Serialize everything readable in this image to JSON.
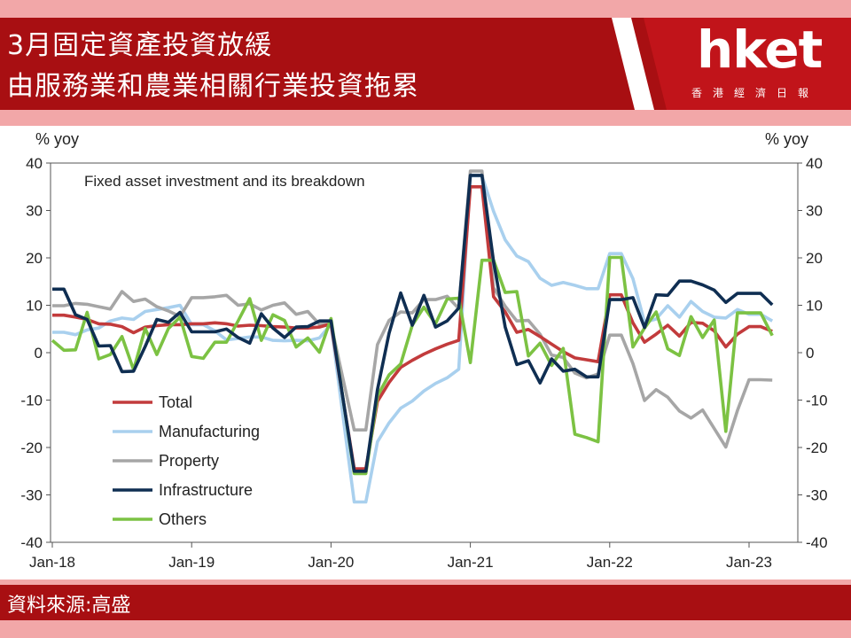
{
  "header": {
    "title_line1": "3月固定資產投資放緩",
    "title_line2": "由服務業和農業相關行業投資拖累",
    "logo_text": "hket",
    "logo_subtext": "香港經濟日報"
  },
  "footer": {
    "source": "資料來源:高盛"
  },
  "colors": {
    "header_bg": "#a80f12",
    "band": "#f2a7a8",
    "Total": "#c23b3c",
    "Manufacturing": "#a9d0ee",
    "Property": "#a6a6a6",
    "Infrastructure": "#0f2e52",
    "Others": "#7cc243"
  },
  "chart_data": {
    "type": "line",
    "title": "Fixed asset investment and its breakdown",
    "ylabel_left": "% yoy",
    "ylabel_right": "% yoy",
    "ylim": [
      -40,
      40
    ],
    "yticks": [
      40,
      30,
      20,
      10,
      0,
      -10,
      -20,
      -30,
      -40
    ],
    "xticks": [
      "Jan-18",
      "Jan-19",
      "Jan-20",
      "Jan-21",
      "Jan-22",
      "Jan-23"
    ],
    "x_start": "2018-01",
    "x_end": "2023-03",
    "legend_position": "lower-left",
    "series": [
      {
        "name": "Total",
        "points": [
          [
            0,
            7.9
          ],
          [
            1,
            7.9
          ],
          [
            2,
            7.5
          ],
          [
            3,
            7
          ],
          [
            4,
            6.1
          ],
          [
            5,
            6
          ],
          [
            6,
            5.5
          ],
          [
            7,
            4.2
          ],
          [
            8,
            5.4
          ],
          [
            9,
            5.7
          ],
          [
            10,
            5.9
          ],
          [
            11,
            5.9
          ],
          [
            12,
            6.1
          ],
          [
            13,
            6.1
          ],
          [
            14,
            6.3
          ],
          [
            15,
            6.1
          ],
          [
            16,
            5.6
          ],
          [
            17,
            5.8
          ],
          [
            18,
            5.7
          ],
          [
            19,
            5.5
          ],
          [
            20,
            5.4
          ],
          [
            21,
            5.2
          ],
          [
            22,
            5.2
          ],
          [
            23,
            5.4
          ],
          [
            24,
            6.1
          ],
          [
            26,
            -24.5
          ],
          [
            27,
            -24.5
          ],
          [
            28,
            -10.3
          ],
          [
            29,
            -6.3
          ],
          [
            30,
            -3.1
          ],
          [
            31,
            -1.6
          ],
          [
            32,
            -0.3
          ],
          [
            33,
            0.8
          ],
          [
            34,
            1.8
          ],
          [
            35,
            2.6
          ],
          [
            36,
            35
          ],
          [
            37,
            35
          ],
          [
            38,
            11.8
          ],
          [
            39,
            8.6
          ],
          [
            40,
            4.3
          ],
          [
            41,
            4.9
          ],
          [
            42,
            3.4
          ],
          [
            43,
            1.8
          ],
          [
            44,
            0.2
          ],
          [
            45,
            -1.1
          ],
          [
            46,
            -1.5
          ],
          [
            47,
            -1.9
          ],
          [
            48,
            12.2
          ],
          [
            49,
            12.2
          ],
          [
            50,
            6.3
          ],
          [
            51,
            2.2
          ],
          [
            52,
            3.9
          ],
          [
            53,
            5.8
          ],
          [
            54,
            3.5
          ],
          [
            55,
            6.4
          ],
          [
            56,
            6.2
          ],
          [
            57,
            4.6
          ],
          [
            58,
            1.2
          ],
          [
            59,
            3.9
          ],
          [
            60,
            5.5
          ],
          [
            61,
            5.5
          ],
          [
            62,
            4.5
          ]
        ]
      },
      {
        "name": "Manufacturing",
        "points": [
          [
            0,
            4.3
          ],
          [
            1,
            4.3
          ],
          [
            2,
            3.8
          ],
          [
            3,
            4.8
          ],
          [
            4,
            5.2
          ],
          [
            5,
            6.7
          ],
          [
            6,
            7.3
          ],
          [
            7,
            7
          ],
          [
            8,
            8.7
          ],
          [
            9,
            9.1
          ],
          [
            10,
            9.5
          ],
          [
            11,
            10
          ],
          [
            12,
            5.9
          ],
          [
            13,
            5.9
          ],
          [
            14,
            4.6
          ],
          [
            15,
            2.7
          ],
          [
            16,
            3
          ],
          [
            17,
            3.3
          ],
          [
            18,
            3.3
          ],
          [
            19,
            2.6
          ],
          [
            20,
            2.5
          ],
          [
            21,
            2.6
          ],
          [
            22,
            2.5
          ],
          [
            23,
            3.1
          ],
          [
            24,
            6
          ],
          [
            26,
            -31.5
          ],
          [
            27,
            -31.5
          ],
          [
            28,
            -18.8
          ],
          [
            29,
            -14.8
          ],
          [
            30,
            -11.7
          ],
          [
            31,
            -10.2
          ],
          [
            32,
            -8.1
          ],
          [
            33,
            -6.5
          ],
          [
            34,
            -5.3
          ],
          [
            35,
            -3.5
          ],
          [
            36,
            37.3
          ],
          [
            37,
            37.3
          ],
          [
            38,
            29.8
          ],
          [
            39,
            23.8
          ],
          [
            40,
            20.4
          ],
          [
            41,
            19.2
          ],
          [
            42,
            15.7
          ],
          [
            43,
            14.2
          ],
          [
            44,
            14.8
          ],
          [
            45,
            14.2
          ],
          [
            46,
            13.5
          ],
          [
            47,
            13.5
          ],
          [
            48,
            20.9
          ],
          [
            49,
            20.9
          ],
          [
            50,
            15.6
          ],
          [
            51,
            6.4
          ],
          [
            52,
            7.1
          ],
          [
            53,
            9.9
          ],
          [
            54,
            7.5
          ],
          [
            55,
            10.8
          ],
          [
            56,
            8.7
          ],
          [
            57,
            7.5
          ],
          [
            58,
            7.3
          ],
          [
            59,
            9.1
          ],
          [
            60,
            8.1
          ],
          [
            61,
            8.1
          ],
          [
            62,
            6.7
          ]
        ]
      },
      {
        "name": "Property",
        "points": [
          [
            0,
            9.9
          ],
          [
            1,
            9.9
          ],
          [
            2,
            10.4
          ],
          [
            3,
            10.2
          ],
          [
            4,
            9.7
          ],
          [
            5,
            9.2
          ],
          [
            6,
            12.9
          ],
          [
            7,
            10.8
          ],
          [
            8,
            11.3
          ],
          [
            9,
            9.7
          ],
          [
            10,
            8.8
          ],
          [
            11,
            7.6
          ],
          [
            12,
            11.6
          ],
          [
            13,
            11.6
          ],
          [
            14,
            11.8
          ],
          [
            15,
            12.1
          ],
          [
            16,
            10
          ],
          [
            17,
            10.3
          ],
          [
            18,
            9
          ],
          [
            19,
            10
          ],
          [
            20,
            10.5
          ],
          [
            21,
            8.1
          ],
          [
            22,
            8.7
          ],
          [
            23,
            6
          ],
          [
            24,
            6
          ],
          [
            26,
            -16.3
          ],
          [
            27,
            -16.3
          ],
          [
            28,
            1.7
          ],
          [
            29,
            6.8
          ],
          [
            30,
            8.6
          ],
          [
            31,
            8.4
          ],
          [
            32,
            11.2
          ],
          [
            33,
            11.2
          ],
          [
            34,
            11.9
          ],
          [
            35,
            9.3
          ],
          [
            36,
            38.3
          ],
          [
            37,
            38.3
          ],
          [
            38,
            13.7
          ],
          [
            39,
            9.8
          ],
          [
            40,
            6.7
          ],
          [
            41,
            6.8
          ],
          [
            42,
            3.9
          ],
          [
            43,
            -0.5
          ],
          [
            44,
            -1
          ],
          [
            45,
            -4.3
          ],
          [
            46,
            -5.3
          ],
          [
            47,
            -4.5
          ],
          [
            48,
            3.7
          ],
          [
            49,
            3.7
          ],
          [
            50,
            -2.3
          ],
          [
            51,
            -10.1
          ],
          [
            52,
            -7.8
          ],
          [
            53,
            -9.4
          ],
          [
            54,
            -12.3
          ],
          [
            55,
            -13.8
          ],
          [
            56,
            -12.1
          ],
          [
            57,
            -16
          ],
          [
            58,
            -19.9
          ],
          [
            59,
            -12.2
          ],
          [
            60,
            -5.7
          ],
          [
            61,
            -5.7
          ],
          [
            62,
            -5.8
          ]
        ]
      },
      {
        "name": "Infrastructure",
        "points": [
          [
            0,
            13.4
          ],
          [
            1,
            13.4
          ],
          [
            2,
            8
          ],
          [
            3,
            7
          ],
          [
            4,
            1.4
          ],
          [
            5,
            1.5
          ],
          [
            6,
            -4
          ],
          [
            7,
            -3.9
          ],
          [
            8,
            1.3
          ],
          [
            9,
            7
          ],
          [
            10,
            6.4
          ],
          [
            11,
            8.5
          ],
          [
            12,
            4.4
          ],
          [
            13,
            4.4
          ],
          [
            14,
            4.4
          ],
          [
            15,
            5
          ],
          [
            16,
            3.2
          ],
          [
            17,
            2
          ],
          [
            18,
            8.2
          ],
          [
            19,
            5.2
          ],
          [
            20,
            3.2
          ],
          [
            21,
            5.4
          ],
          [
            22,
            5.5
          ],
          [
            23,
            6.7
          ],
          [
            24,
            6.7
          ],
          [
            26,
            -25
          ],
          [
            27,
            -25
          ],
          [
            28,
            -7.8
          ],
          [
            29,
            4.1
          ],
          [
            30,
            12.6
          ],
          [
            31,
            5.8
          ],
          [
            32,
            12.1
          ],
          [
            33,
            5.4
          ],
          [
            34,
            6.7
          ],
          [
            35,
            9.4
          ],
          [
            36,
            37.4
          ],
          [
            37,
            37.4
          ],
          [
            38,
            19.2
          ],
          [
            39,
            5.4
          ],
          [
            40,
            -2.5
          ],
          [
            41,
            -1.7
          ],
          [
            42,
            -6.4
          ],
          [
            43,
            -1.3
          ],
          [
            44,
            -3.9
          ],
          [
            45,
            -3.5
          ],
          [
            46,
            -5.1
          ],
          [
            47,
            -5.1
          ],
          [
            48,
            11.2
          ],
          [
            49,
            11.2
          ],
          [
            50,
            11.6
          ],
          [
            51,
            5.3
          ],
          [
            52,
            12.2
          ],
          [
            53,
            12.1
          ],
          [
            54,
            15.1
          ],
          [
            55,
            15.1
          ],
          [
            56,
            14.3
          ],
          [
            57,
            13.2
          ],
          [
            58,
            10.6
          ],
          [
            59,
            12.5
          ],
          [
            60,
            12.5
          ],
          [
            61,
            12.5
          ],
          [
            62,
            10.1
          ]
        ]
      },
      {
        "name": "Others",
        "points": [
          [
            0,
            2.6
          ],
          [
            1,
            0.5
          ],
          [
            2,
            0.6
          ],
          [
            3,
            8.5
          ],
          [
            4,
            -1.3
          ],
          [
            5,
            -0.4
          ],
          [
            6,
            3.4
          ],
          [
            7,
            -3.6
          ],
          [
            8,
            5.1
          ],
          [
            9,
            -0.4
          ],
          [
            10,
            5.1
          ],
          [
            11,
            7.5
          ],
          [
            12,
            -0.8
          ],
          [
            13,
            -1.2
          ],
          [
            14,
            2.2
          ],
          [
            15,
            2.2
          ],
          [
            16,
            6.7
          ],
          [
            17,
            11.4
          ],
          [
            18,
            2.6
          ],
          [
            19,
            8
          ],
          [
            20,
            6.8
          ],
          [
            21,
            1.2
          ],
          [
            22,
            3.1
          ],
          [
            23,
            0.1
          ],
          [
            24,
            7.2
          ],
          [
            26,
            -25.5
          ],
          [
            27,
            -25.5
          ],
          [
            28,
            -9.1
          ],
          [
            29,
            -4.7
          ],
          [
            30,
            -2.4
          ],
          [
            31,
            5.8
          ],
          [
            32,
            9.6
          ],
          [
            33,
            6.1
          ],
          [
            34,
            11.3
          ],
          [
            35,
            11.5
          ],
          [
            36,
            -2.1
          ],
          [
            37,
            19.5
          ],
          [
            38,
            19.5
          ],
          [
            39,
            12.7
          ],
          [
            40,
            12.9
          ],
          [
            41,
            -0.7
          ],
          [
            42,
            2
          ],
          [
            43,
            -2.7
          ],
          [
            44,
            0.9
          ],
          [
            45,
            -17.2
          ],
          [
            46,
            -17.9
          ],
          [
            47,
            -18.8
          ],
          [
            48,
            20.1
          ],
          [
            49,
            20.1
          ],
          [
            50,
            1.2
          ],
          [
            51,
            5.2
          ],
          [
            52,
            8.6
          ],
          [
            53,
            0.8
          ],
          [
            54,
            -0.6
          ],
          [
            55,
            7.6
          ],
          [
            56,
            3.2
          ],
          [
            57,
            6.9
          ],
          [
            58,
            -16.6
          ],
          [
            59,
            8.4
          ],
          [
            60,
            8.4
          ],
          [
            61,
            8.4
          ],
          [
            62,
            3.6
          ]
        ]
      }
    ]
  }
}
